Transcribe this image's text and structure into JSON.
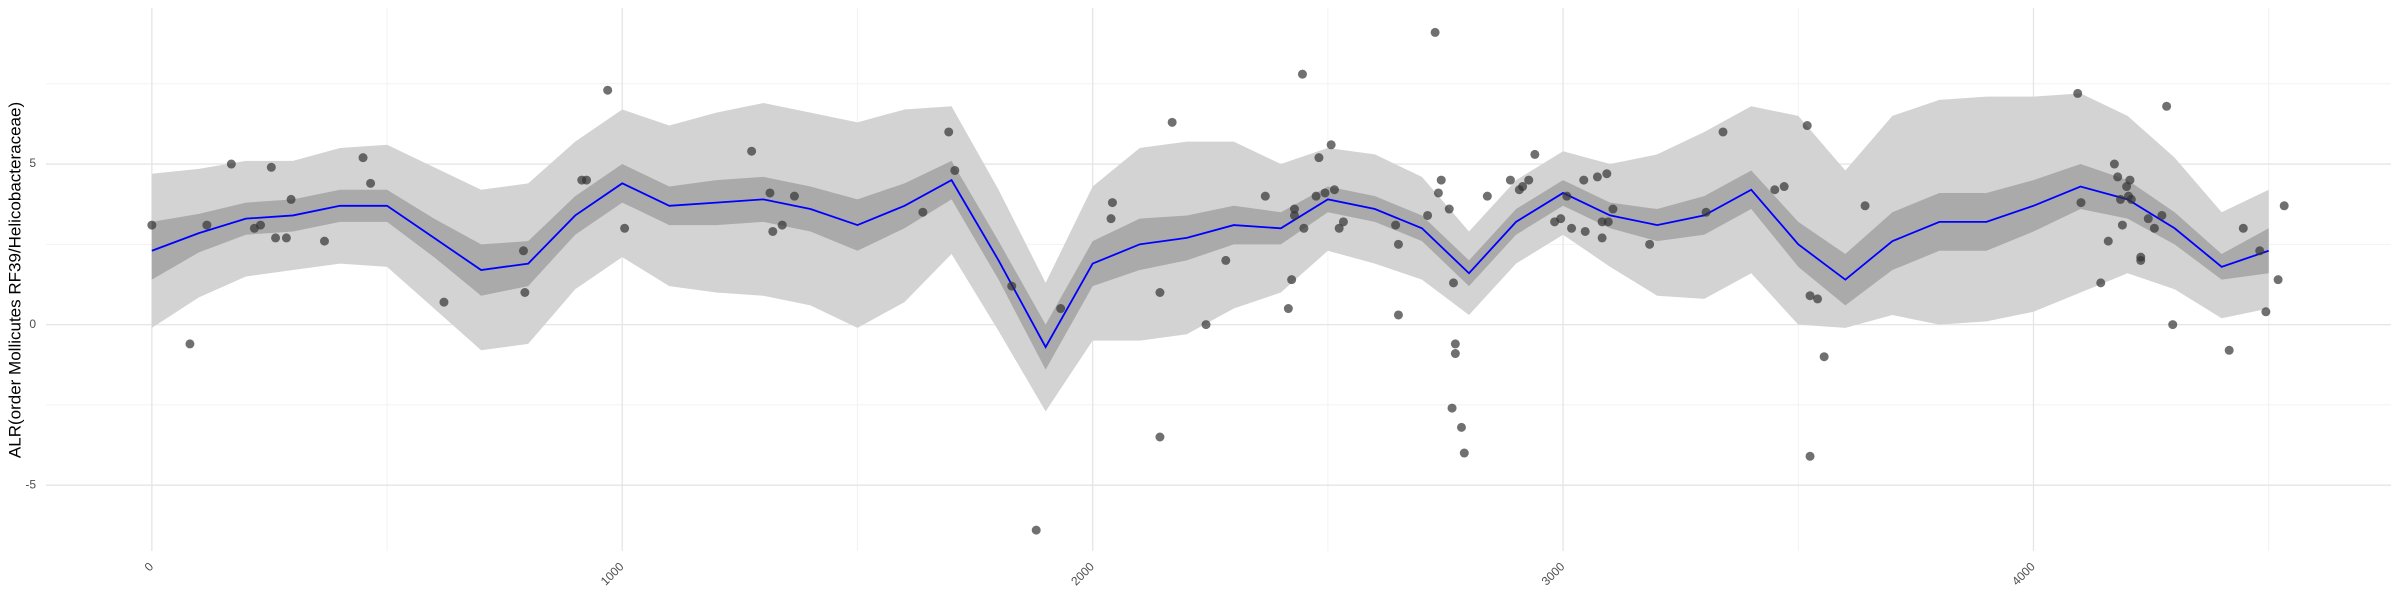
{
  "chart_data": {
    "type": "scatter",
    "y_label": "ALR(order Mollicutes RF39/Helicobacteraceae)",
    "xlim": [
      -225,
      4760
    ],
    "ylim": [
      -7.05,
      9.86
    ],
    "xticks": [
      0,
      1000,
      2000,
      3000,
      4000
    ],
    "yticks": [
      -5,
      0,
      5
    ],
    "xticks_minor": [
      500,
      1500,
      2500,
      3500,
      4500
    ],
    "yticks_minor": [
      -2.5,
      2.5,
      7.5
    ],
    "grid": true,
    "points": {
      "color": "#333333",
      "x": [
        0,
        81,
        117,
        169,
        218,
        231,
        254,
        263,
        286,
        296,
        367,
        449,
        465,
        621,
        790,
        793,
        914,
        924,
        969,
        1005,
        1275,
        1314,
        1320,
        1340,
        1366,
        1639,
        1694,
        1707,
        1828,
        1880,
        1932,
        2039,
        2042,
        2143,
        2143,
        2169,
        2241,
        2283,
        2367,
        2416,
        2423,
        2429,
        2429,
        2446,
        2449,
        2475,
        2481,
        2494,
        2507,
        2514,
        2524,
        2533,
        2644,
        2650,
        2650,
        2712,
        2728,
        2735,
        2741,
        2758,
        2767,
        2771,
        2771,
        2764,
        2784,
        2790,
        2839,
        2888,
        2907,
        2914,
        2927,
        2940,
        2982,
        2995,
        3008,
        3018,
        3044,
        3047,
        3073,
        3083,
        3093,
        3096,
        3083,
        3106,
        3184,
        3304,
        3340,
        3450,
        3470,
        3519,
        3525,
        3525,
        3541,
        3555,
        3642,
        4094,
        4101,
        4143,
        4159,
        4172,
        4179,
        4185,
        4189,
        4198,
        4202,
        4205,
        4208,
        4228,
        4228,
        4244,
        4257,
        4273,
        4283,
        4296,
        4416,
        4446,
        4481,
        4494,
        4520,
        4533
      ],
      "y": [
        3.1,
        -0.6,
        3.1,
        5.0,
        3.0,
        3.1,
        4.9,
        2.7,
        2.7,
        3.9,
        2.6,
        5.2,
        4.4,
        0.7,
        2.3,
        1.0,
        4.5,
        4.5,
        7.3,
        3.0,
        5.4,
        4.1,
        2.9,
        3.1,
        4.0,
        3.5,
        6.0,
        4.8,
        1.2,
        -6.4,
        0.5,
        3.3,
        3.8,
        1.0,
        -3.5,
        6.3,
        0.0,
        2.0,
        4.0,
        0.5,
        1.4,
        3.4,
        3.6,
        7.8,
        3.0,
        4.0,
        5.2,
        4.1,
        5.6,
        4.2,
        3.0,
        3.2,
        3.1,
        2.5,
        0.3,
        3.4,
        9.1,
        4.1,
        4.5,
        3.6,
        1.3,
        -0.6,
        -0.9,
        -2.6,
        -3.2,
        -4.0,
        4.0,
        4.5,
        4.2,
        4.3,
        4.5,
        5.3,
        3.2,
        3.3,
        4.0,
        3.0,
        4.5,
        2.9,
        4.6,
        3.2,
        4.7,
        3.2,
        2.7,
        3.6,
        2.5,
        3.5,
        6.0,
        4.2,
        4.3,
        6.2,
        0.9,
        -4.1,
        0.8,
        -1.0,
        3.7,
        7.2,
        3.8,
        1.3,
        2.6,
        5.0,
        4.6,
        3.9,
        3.1,
        4.3,
        4.0,
        4.5,
        3.9,
        2.1,
        2.0,
        3.3,
        3.0,
        3.4,
        6.8,
        0.0,
        -0.8,
        3.0,
        2.3,
        0.4,
        1.4,
        3.7
      ]
    },
    "smooth": {
      "color": "#0000ff",
      "x": [
        0,
        100,
        200,
        300,
        400,
        500,
        600,
        700,
        800,
        900,
        1000,
        1100,
        1200,
        1300,
        1400,
        1500,
        1600,
        1700,
        1800,
        1900,
        2000,
        2100,
        2200,
        2300,
        2400,
        2500,
        2600,
        2700,
        2800,
        2900,
        3000,
        3100,
        3200,
        3300,
        3400,
        3500,
        3600,
        3700,
        3800,
        3900,
        4000,
        4100,
        4200,
        4300,
        4400,
        4500
      ],
      "values": [
        2.3,
        2.85,
        3.3,
        3.4,
        3.7,
        3.7,
        2.7,
        1.7,
        1.9,
        3.4,
        4.4,
        3.7,
        3.8,
        3.9,
        3.6,
        3.1,
        3.7,
        4.5,
        2.0,
        -0.7,
        1.9,
        2.5,
        2.7,
        3.1,
        3.0,
        3.9,
        3.6,
        3.0,
        1.6,
        3.2,
        4.1,
        3.4,
        3.1,
        3.4,
        4.2,
        2.5,
        1.4,
        2.6,
        3.2,
        3.2,
        3.7,
        4.3,
        3.9,
        3.0,
        1.8,
        2.3
      ]
    },
    "band_outer": {
      "color": "#d3d3d3",
      "upper": [
        4.7,
        4.85,
        5.1,
        5.1,
        5.5,
        5.6,
        4.9,
        4.2,
        4.4,
        5.7,
        6.7,
        6.2,
        6.6,
        6.9,
        6.6,
        6.3,
        6.7,
        6.8,
        4.2,
        1.3,
        4.3,
        5.5,
        5.7,
        5.7,
        5.0,
        5.5,
        5.3,
        4.6,
        2.9,
        4.5,
        5.4,
        5.0,
        5.3,
        6.0,
        6.8,
        6.5,
        4.8,
        6.5,
        7.0,
        7.1,
        7.1,
        7.2,
        6.5,
        5.2,
        3.5,
        4.2
      ],
      "lower": [
        -0.1,
        0.85,
        1.5,
        1.7,
        1.9,
        1.8,
        0.5,
        -0.8,
        -0.6,
        1.1,
        2.1,
        1.2,
        1.0,
        0.9,
        0.6,
        -0.1,
        0.7,
        2.2,
        -0.2,
        -2.7,
        -0.5,
        -0.5,
        -0.3,
        0.5,
        1.0,
        2.3,
        1.9,
        1.4,
        0.3,
        1.9,
        2.8,
        1.8,
        0.9,
        0.8,
        1.6,
        0.0,
        -0.1,
        0.3,
        0.0,
        0.1,
        0.4,
        1.0,
        1.6,
        1.1,
        0.2,
        0.5
      ]
    },
    "band_inner": {
      "color": "#aaaaaa",
      "upper": [
        3.2,
        3.45,
        3.8,
        3.9,
        4.2,
        4.2,
        3.3,
        2.5,
        2.6,
        4.0,
        5.0,
        4.3,
        4.5,
        4.6,
        4.3,
        3.9,
        4.4,
        5.1,
        2.6,
        0.0,
        2.6,
        3.3,
        3.4,
        3.7,
        3.5,
        4.3,
        4.0,
        3.4,
        2.0,
        3.6,
        4.5,
        3.8,
        3.6,
        4.0,
        4.8,
        3.2,
        2.2,
        3.5,
        4.1,
        4.1,
        4.5,
        5.0,
        4.5,
        3.5,
        2.2,
        3.0
      ],
      "lower": [
        1.4,
        2.25,
        2.8,
        2.9,
        3.2,
        3.2,
        2.1,
        0.9,
        1.2,
        2.8,
        3.8,
        3.1,
        3.1,
        3.2,
        2.9,
        2.3,
        3.0,
        3.9,
        1.4,
        -1.4,
        1.2,
        1.7,
        2.0,
        2.5,
        2.5,
        3.5,
        3.2,
        2.6,
        1.2,
        2.8,
        3.7,
        3.0,
        2.6,
        2.8,
        3.6,
        1.8,
        0.6,
        1.7,
        2.3,
        2.3,
        2.9,
        3.6,
        3.3,
        2.5,
        1.4,
        1.6
      ]
    }
  }
}
